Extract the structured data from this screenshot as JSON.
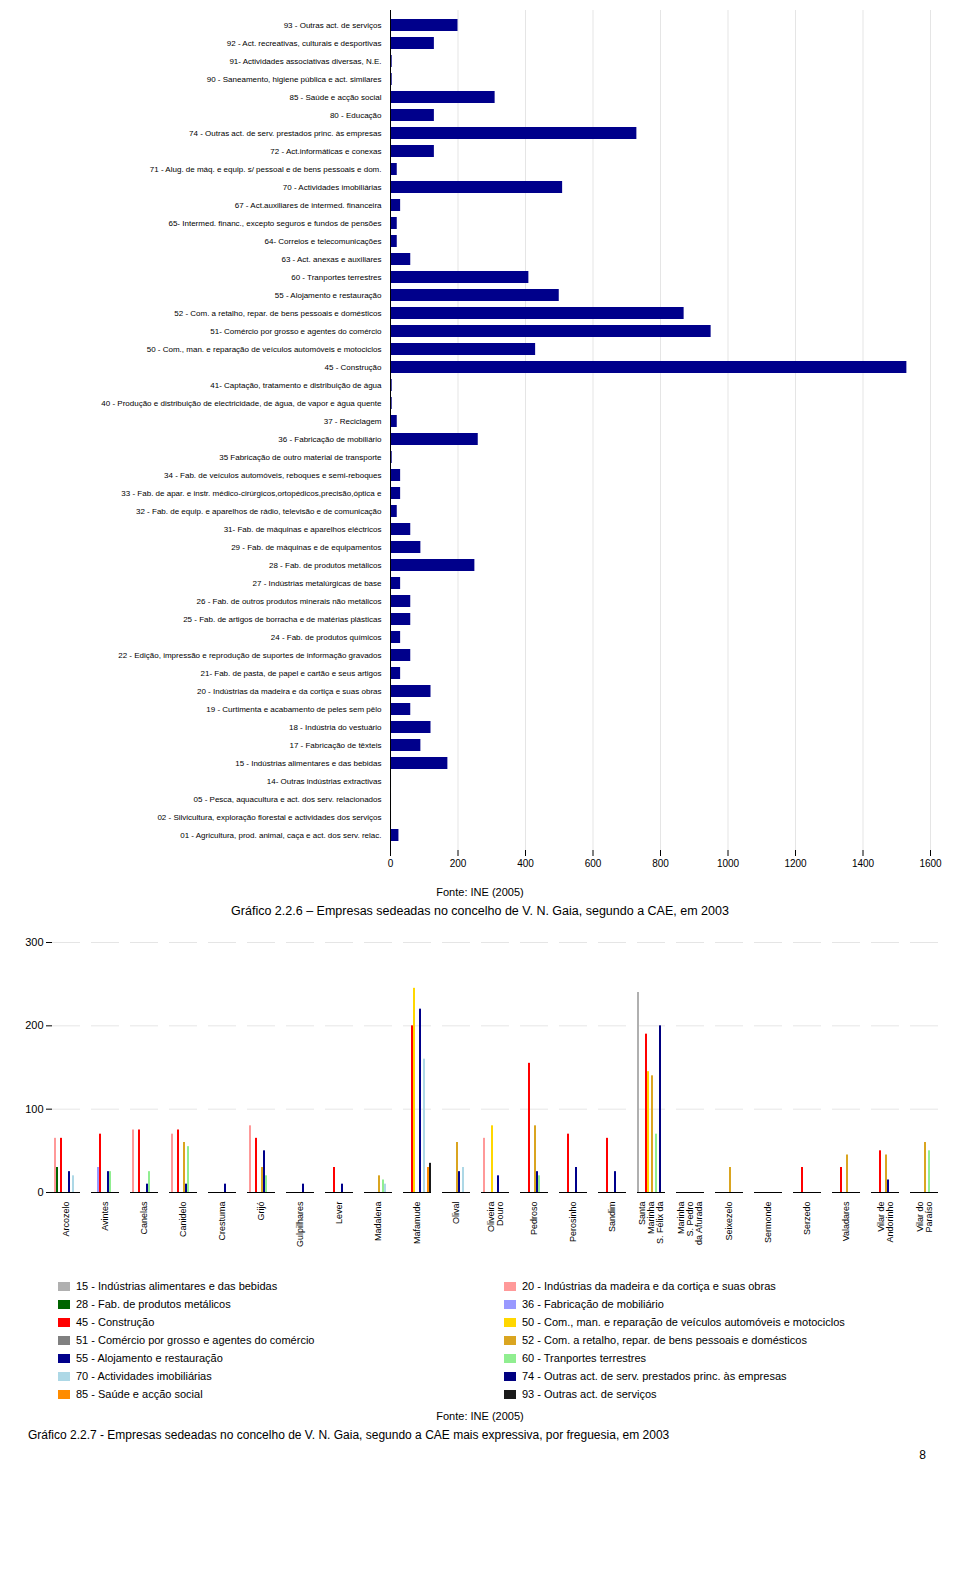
{
  "chart_data": [
    {
      "type": "bar",
      "orientation": "horizontal",
      "title": "Gráfico 2.2.6 – Empresas sedeadas no concelho de V. N. Gaia, segundo a CAE, em 2003",
      "source": "Fonte: INE (2005)",
      "color": "#00008B",
      "xlim": [
        0,
        1600
      ],
      "xticks": [
        0,
        200,
        400,
        600,
        800,
        1000,
        1200,
        1400,
        1600
      ],
      "grid": true,
      "categories": [
        "01 - Agricultura, prod. animal, caça e act. dos serv. relac.",
        "02 - Silvicultura, exploração florestal e actividades dos serviços",
        "05 - Pesca, aquacultura e act. dos serv. relacionados",
        "14- Outras indústrias extractivas",
        "15 - Indústrias alimentares e das bebidas",
        "17 - Fabricação de têxteis",
        "18 - Indústria do vestuário",
        "19 - Curtimenta e acabamento de peles sem pêlo",
        "20 - Indústrias da madeira e da cortiça e suas obras",
        "21- Fab. de pasta, de papel e cartão e seus artigos",
        "22 - Edição, impressão e reprodução de suportes de informação gravados",
        "24 - Fab. de produtos químicos",
        "25 - Fab. de artigos de borracha e de matérias plásticas",
        "26 - Fab. de outros produtos minerais não metálicos",
        "27 - Indústrias metalúrgicas de base",
        "28 - Fab. de produtos metálicos",
        "29 - Fab. de máquinas e de equipamentos",
        "31- Fab. de máquinas e aparelhos eléctricos",
        "32 - Fab. de equip. e aparelhos de rádio, televisão e de comunicação",
        "33 - Fab. de apar. e instr. médico-cirúrgicos,ortopédicos,precisão,óptica e",
        "34 - Fab. de veículos automóveis, reboques e semi-reboques",
        "35 Fabricação de outro material de transporte",
        "36 - Fabricação de mobiliário",
        "37 - Reciclagem",
        "40 - Produção e distribuição de electricidade, de água, de vapor e água quente",
        "41- Captação, tratamento e distribuição de água",
        "45 - Construção",
        "50 - Com., man. e reparação de veículos automóveis e motociclos",
        "51- Comércio por grosso e agentes do comércio",
        "52 - Com. a retalho, repar. de bens pessoais e domésticos",
        "55 - Alojamento e restauração",
        "60 - Tranportes terrestres",
        "63 - Act. anexas e auxiliares",
        "64- Correios e telecomunicações",
        "65- Intermed. financ., excepto seguros e fundos de pensões",
        "67 - Act.auxiliares de intermed. financeira",
        "70 - Actividades imobiliárias",
        "71 - Alug. de máq. e equip. s/ pessoal e de bens pessoais e dom.",
        "72 - Act.informáticas e conexas",
        "74 - Outras act. de serv. prestados princ. às empresas",
        "80 - Educação",
        "85 - Saúde e acção social",
        "90 - Saneamento, higiene pública e act. similares",
        "91- Actividades associativas diversas, N.E.",
        "92 - Act. recreativas, culturais e desportivas",
        "93 - Outras act. de serviços"
      ],
      "values": [
        25,
        3,
        3,
        3,
        170,
        90,
        120,
        60,
        120,
        30,
        60,
        30,
        60,
        60,
        30,
        250,
        90,
        60,
        20,
        30,
        30,
        5,
        260,
        20,
        5,
        5,
        1530,
        430,
        950,
        870,
        500,
        410,
        60,
        20,
        20,
        30,
        510,
        20,
        130,
        730,
        130,
        310,
        5,
        5,
        130,
        200
      ]
    },
    {
      "type": "bar",
      "title": "Gráfico 2.2.7 - Empresas sedeadas no concelho de V. N. Gaia, segundo a CAE mais expressiva, por freguesia, em 2003",
      "source": "Fonte: INE (2005)",
      "annotations": [
        "8"
      ],
      "legend": "bottom",
      "grid": true,
      "ylim": [
        0,
        300
      ],
      "yticks": [
        0,
        100,
        200,
        300
      ],
      "categories": [
        "Arcozelo",
        "Avintes",
        "Canelas",
        "Canidelo",
        "Crestuma",
        "Grijó",
        "Gulpilhares",
        "Lever",
        "Madalena",
        "Mafamude",
        "Olival",
        "Oliveira\nDouro",
        "Pedroso",
        "Perosinho",
        "Sandim",
        "Santa\nMarinha\nS. Félix da",
        "Marinha\nS. Pedro\nda Afurada",
        "Seixezelo",
        "Sermonde",
        "Serzedo",
        "Valadares",
        "Vilar de\nAndorinho",
        "Vilar do\nParaíso"
      ],
      "series": [
        {
          "name": "15 - Indústrias alimentares e das bebidas",
          "color": "#B0B0B0",
          "values": [
            0,
            0,
            0,
            0,
            0,
            0,
            0,
            0,
            0,
            0,
            0,
            0,
            0,
            0,
            0,
            240,
            0,
            0,
            0,
            0,
            0,
            0,
            0
          ]
        },
        {
          "name": "20 - Indústrias da madeira e da cortiça e suas obras",
          "color": "#FF9999",
          "values": [
            65,
            0,
            75,
            70,
            0,
            80,
            0,
            0,
            0,
            0,
            0,
            65,
            0,
            0,
            0,
            0,
            0,
            0,
            0,
            0,
            0,
            0,
            0
          ]
        },
        {
          "name": "28 - Fab. de produtos metálicos",
          "color": "#006400",
          "values": [
            30,
            0,
            0,
            0,
            0,
            0,
            0,
            0,
            0,
            0,
            0,
            0,
            0,
            0,
            0,
            0,
            0,
            0,
            0,
            0,
            0,
            0,
            0
          ]
        },
        {
          "name": "36 - Fabricação de mobiliário",
          "color": "#9999FF",
          "values": [
            0,
            30,
            0,
            0,
            0,
            0,
            0,
            0,
            0,
            0,
            0,
            0,
            0,
            0,
            0,
            0,
            0,
            0,
            0,
            0,
            0,
            0,
            0
          ]
        },
        {
          "name": "45 - Construção",
          "color": "#FF0000",
          "values": [
            65,
            70,
            75,
            75,
            0,
            65,
            0,
            30,
            0,
            200,
            0,
            0,
            155,
            70,
            65,
            190,
            0,
            0,
            0,
            30,
            30,
            50,
            0
          ]
        },
        {
          "name": "50 - Com., man. e reparação de veículos automóveis e motociclos",
          "color": "#FFD700",
          "values": [
            0,
            0,
            0,
            0,
            0,
            0,
            0,
            0,
            0,
            245,
            0,
            80,
            0,
            0,
            0,
            145,
            0,
            0,
            0,
            0,
            0,
            0,
            0
          ]
        },
        {
          "name": "51 - Comércio por grosso e agentes do comércio",
          "color": "#808080",
          "values": [
            0,
            0,
            0,
            0,
            0,
            0,
            0,
            0,
            0,
            0,
            0,
            0,
            0,
            0,
            0,
            0,
            0,
            0,
            0,
            0,
            0,
            0,
            0
          ]
        },
        {
          "name": "52 - Com. a retalho, repar. de bens pessoais e domésticos",
          "color": "#DAA520",
          "values": [
            0,
            0,
            0,
            60,
            0,
            30,
            0,
            0,
            20,
            0,
            60,
            0,
            80,
            0,
            0,
            140,
            0,
            30,
            0,
            0,
            45,
            45,
            60
          ]
        },
        {
          "name": "55 - Alojamento e restauração",
          "color": "#00008B",
          "values": [
            25,
            25,
            10,
            10,
            10,
            50,
            10,
            10,
            0,
            220,
            25,
            20,
            25,
            30,
            25,
            0,
            0,
            0,
            0,
            0,
            0,
            15,
            0
          ]
        },
        {
          "name": "60 - Tranportes terrestres",
          "color": "#90EE90",
          "values": [
            0,
            25,
            25,
            55,
            0,
            20,
            0,
            0,
            15,
            0,
            0,
            0,
            20,
            0,
            0,
            70,
            0,
            0,
            0,
            0,
            0,
            0,
            50
          ]
        },
        {
          "name": "70 - Actividades imobiliárias",
          "color": "#ADD8E6",
          "values": [
            20,
            0,
            0,
            0,
            0,
            0,
            0,
            0,
            10,
            160,
            30,
            0,
            0,
            0,
            0,
            0,
            0,
            0,
            0,
            0,
            0,
            0,
            0
          ]
        },
        {
          "name": "74 - Outras act. de serv. prestados princ. às empresas",
          "color": "#000080",
          "values": [
            0,
            0,
            0,
            0,
            0,
            0,
            0,
            0,
            0,
            0,
            0,
            0,
            0,
            0,
            0,
            200,
            0,
            0,
            0,
            0,
            0,
            0,
            0
          ]
        },
        {
          "name": "85 - Saúde e acção social",
          "color": "#FF8C00",
          "values": [
            0,
            0,
            0,
            0,
            0,
            0,
            0,
            0,
            0,
            30,
            0,
            0,
            0,
            0,
            0,
            0,
            0,
            0,
            0,
            0,
            0,
            0,
            0
          ]
        },
        {
          "name": "93 - Outras act. de serviços",
          "color": "#1A1A1A",
          "values": [
            0,
            0,
            0,
            0,
            0,
            0,
            0,
            0,
            0,
            35,
            0,
            0,
            0,
            0,
            0,
            0,
            0,
            0,
            0,
            0,
            0,
            0,
            0
          ]
        }
      ]
    }
  ]
}
